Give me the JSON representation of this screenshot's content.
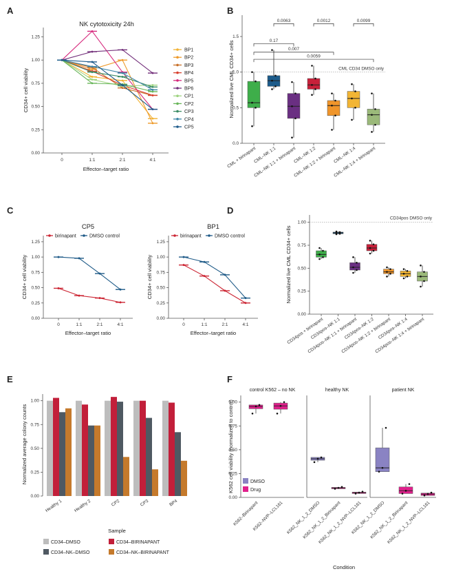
{
  "panel_labels": [
    "A",
    "B",
    "C",
    "D",
    "E",
    "F"
  ],
  "colors": {
    "BP1": "#f2b233",
    "BP2": "#ee9a2a",
    "BP3": "#c8712a",
    "BP4": "#d8412f",
    "BP5": "#d6297d",
    "BP6": "#73307b",
    "CP1": "#9ed380",
    "CP2": "#67b558",
    "CP3": "#3d8d65",
    "CP4": "#3d86a6",
    "CP5": "#1d5a8a",
    "birinapant": "#cc2634",
    "dmso": "#1f5b88",
    "e_cd34_dmso": "#bdbdbd",
    "e_cd34_birin": "#c21f3a",
    "e_nk_dmso": "#4f5962",
    "e_nk_birin": "#c57a2c",
    "f_dmso": "#8a83c3",
    "f_drug": "#e0208c"
  },
  "chart_data": [
    {
      "panel": "A",
      "type": "line",
      "title": "NK cytotoxicity 24h",
      "xlabel": "Effector–target ratio",
      "ylabel": "CD34+ cell viability",
      "categories": [
        "0",
        "1:1",
        "2:1",
        "4:1"
      ],
      "yticks": [
        "0.00",
        "0.25",
        "0.50",
        "0.75",
        "1.00",
        "1.25"
      ],
      "ylim": [
        0,
        1.35
      ],
      "legend_position": "right",
      "series": [
        {
          "name": "BP1",
          "values": [
            1.0,
            0.82,
            0.78,
            0.37
          ]
        },
        {
          "name": "BP2",
          "values": [
            1.0,
            0.9,
            1.0,
            0.32
          ]
        },
        {
          "name": "BP3",
          "values": [
            1.0,
            0.92,
            0.7,
            0.62
          ]
        },
        {
          "name": "BP4",
          "values": [
            1.0,
            0.88,
            0.73,
            0.62
          ]
        },
        {
          "name": "BP5",
          "values": [
            1.0,
            1.31,
            0.87,
            0.47
          ]
        },
        {
          "name": "BP6",
          "values": [
            1.0,
            1.09,
            1.11,
            0.86
          ]
        },
        {
          "name": "CP1",
          "values": [
            1.0,
            0.79,
            0.72,
            0.73
          ]
        },
        {
          "name": "CP2",
          "values": [
            1.0,
            0.75,
            0.74,
            0.66
          ]
        },
        {
          "name": "CP3",
          "values": [
            1.0,
            0.87,
            0.82,
            0.71
          ]
        },
        {
          "name": "CP4",
          "values": [
            1.0,
            0.93,
            0.86,
            0.68
          ]
        },
        {
          "name": "CP5",
          "values": [
            1.0,
            0.98,
            0.73,
            0.47
          ]
        }
      ]
    },
    {
      "panel": "B",
      "type": "box",
      "xlabel": "",
      "ylabel": "Normalized live CML CD34+ cells",
      "yticks": [
        "0.0",
        "0.5",
        "1.0",
        "1.5"
      ],
      "ylim": [
        0,
        1.8
      ],
      "reference_line": {
        "value": 1.0,
        "label": "CML CD34 DMSO only"
      },
      "categories": [
        "CML + birinapant",
        "CML–NK 1:1",
        "CML–NK 1:1 + birinapant",
        "CML–NK 1:2",
        "CML–NK 1:2 + birinapant",
        "CML–NK 1:4",
        "CML–NK 1:4 + birinapant"
      ],
      "box_colors": [
        "#3eae4a",
        "#1c5b8a",
        "#6a2f82",
        "#c8203a",
        "#f0952a",
        "#f2b534",
        "#9bb97a"
      ],
      "boxes": [
        {
          "q1": 0.5,
          "median": 0.57,
          "q3": 0.87,
          "min": 0.24,
          "max": 1.0
        },
        {
          "q1": 0.8,
          "median": 0.88,
          "q3": 0.95,
          "min": 0.76,
          "max": 1.31
        },
        {
          "q1": 0.35,
          "median": 0.52,
          "q3": 0.7,
          "min": 0.08,
          "max": 0.86
        },
        {
          "q1": 0.76,
          "median": 0.82,
          "q3": 0.91,
          "min": 0.68,
          "max": 1.09
        },
        {
          "q1": 0.39,
          "median": 0.53,
          "q3": 0.6,
          "min": 0.19,
          "max": 0.7
        },
        {
          "q1": 0.5,
          "median": 0.63,
          "q3": 0.73,
          "min": 0.33,
          "max": 0.83
        },
        {
          "q1": 0.26,
          "median": 0.4,
          "q3": 0.48,
          "min": 0.16,
          "max": 0.7
        }
      ],
      "significance": [
        {
          "from": 2,
          "to": 3,
          "p": "0.0063"
        },
        {
          "from": 4,
          "to": 5,
          "p": "0.0012"
        },
        {
          "from": 6,
          "to": 7,
          "p": "0.0099"
        },
        {
          "from": 1,
          "to": 3,
          "p": "0.17"
        },
        {
          "from": 1,
          "to": 5,
          "p": "0.007"
        },
        {
          "from": 1,
          "to": 7,
          "p": "0.0059"
        }
      ]
    },
    {
      "panel": "C",
      "type": "line",
      "xlabel": "Effector–target ratio",
      "ylabel": "CD34+ cell viability",
      "categories": [
        "0",
        "1:1",
        "2:1",
        "4:1"
      ],
      "yticks": [
        "0.00",
        "0.25",
        "0.50",
        "0.75",
        "1.00",
        "1.25"
      ],
      "ylim": [
        0,
        1.35
      ],
      "legend_position": "top",
      "subplots": [
        {
          "title": "CP5",
          "series": [
            {
              "name": "birinapant",
              "values": [
                0.49,
                0.37,
                0.33,
                0.26
              ]
            },
            {
              "name": "DMSO control",
              "values": [
                1.0,
                0.98,
                0.73,
                0.47
              ]
            }
          ]
        },
        {
          "title": "BP1",
          "series": [
            {
              "name": "birinapant",
              "values": [
                0.87,
                0.69,
                0.45,
                0.25
              ]
            },
            {
              "name": "DMSO control",
              "values": [
                1.0,
                0.92,
                0.71,
                0.33
              ]
            }
          ]
        }
      ]
    },
    {
      "panel": "D",
      "type": "box",
      "xlabel": "",
      "ylabel": "Normalized live CML CD34+ cells",
      "yticks": [
        "0.00",
        "0.25",
        "0.50",
        "0.75",
        "1.00"
      ],
      "ylim": [
        0,
        1.08
      ],
      "reference_line": {
        "value": 1.0,
        "label": "CD34pos DMSO only"
      },
      "categories": [
        "CD34pos + birinapant",
        "CD34pos–NK 1:1",
        "CD34pos–NK 1:1 + birinapant",
        "CD34pos–NK 1:2",
        "CD34pos–NK 1:2 + birinapant",
        "CD34pos–NK 1:4",
        "CD34pos–NK 1:4 + birinapant"
      ],
      "box_colors": [
        "#3eae4a",
        "#1c5b8a",
        "#6a2f82",
        "#c8203a",
        "#f0952a",
        "#f2b534",
        "#9bb97a"
      ],
      "boxes": [
        {
          "q1": 0.62,
          "median": 0.65,
          "q3": 0.69,
          "min": 0.6,
          "max": 0.72
        },
        {
          "q1": 0.875,
          "median": 0.885,
          "q3": 0.893,
          "min": 0.87,
          "max": 0.9
        },
        {
          "q1": 0.48,
          "median": 0.51,
          "q3": 0.56,
          "min": 0.45,
          "max": 0.62
        },
        {
          "q1": 0.69,
          "median": 0.72,
          "q3": 0.76,
          "min": 0.66,
          "max": 0.8
        },
        {
          "q1": 0.44,
          "median": 0.46,
          "q3": 0.49,
          "min": 0.41,
          "max": 0.51
        },
        {
          "q1": 0.41,
          "median": 0.44,
          "q3": 0.47,
          "min": 0.39,
          "max": 0.49
        },
        {
          "q1": 0.36,
          "median": 0.41,
          "q3": 0.46,
          "min": 0.3,
          "max": 0.53
        }
      ]
    },
    {
      "panel": "E",
      "type": "bar",
      "xlabel": "Sample",
      "ylabel": "Normalized average colony counts",
      "categories": [
        "Healthy 1",
        "Healthy 2",
        "CP2",
        "CP3",
        "BP4"
      ],
      "yticks": [
        "0.00",
        "0.25",
        "0.50",
        "0.75",
        "1.00"
      ],
      "ylim": [
        0,
        1.07
      ],
      "legend_position": "bottom",
      "series": [
        {
          "name": "CD34–DMSO",
          "values": [
            1.0,
            1.0,
            1.0,
            1.0,
            1.0
          ]
        },
        {
          "name": "CD34–BIRINAPANT",
          "values": [
            1.03,
            0.96,
            1.04,
            1.0,
            0.98
          ]
        },
        {
          "name": "CD34–NK–DMSO",
          "values": [
            0.88,
            0.74,
            0.99,
            0.82,
            0.67
          ]
        },
        {
          "name": "CD34–NK–BIRINAPANT",
          "values": [
            0.92,
            0.74,
            0.41,
            0.28,
            0.37
          ]
        }
      ]
    },
    {
      "panel": "F",
      "type": "box",
      "xlabel": "Condition",
      "ylabel": "K562 cell viability (normalized to control)",
      "yticks": [
        "0.00",
        "0.25",
        "0.50",
        "0.75",
        "1.00"
      ],
      "ylim": [
        0,
        1.07
      ],
      "legend": [
        "DMSO",
        "Drug"
      ],
      "facets": [
        {
          "title": "control K562 – no NK",
          "categories": [
            "K562–Birinapant",
            "K562–NVP–LCL161"
          ],
          "boxes": [
            {
              "series": "Drug",
              "q1": 0.93,
              "median": 0.955,
              "q3": 0.97,
              "min": 0.88,
              "max": 0.97
            },
            {
              "series": "Drug",
              "q1": 0.925,
              "median": 0.96,
              "q3": 0.99,
              "min": 0.88,
              "max": 1.0
            }
          ]
        },
        {
          "title": "healthy NK",
          "categories": [
            "K562_NK_1_2_DMSO",
            "K562_NK_1_2_Birinapant",
            "K562_NK_1_2_NVP–LCL161"
          ],
          "boxes": [
            {
              "series": "DMSO",
              "q1": 0.39,
              "median": 0.405,
              "q3": 0.42,
              "min": 0.37,
              "max": 0.42
            },
            {
              "series": "Drug",
              "q1": 0.095,
              "median": 0.1,
              "q3": 0.105,
              "min": 0.09,
              "max": 0.11
            },
            {
              "series": "Drug",
              "q1": 0.045,
              "median": 0.05,
              "q3": 0.055,
              "min": 0.04,
              "max": 0.06
            }
          ]
        },
        {
          "title": "patient NK",
          "categories": [
            "K562_NK_1_2_DMSO",
            "K562_NK_1_2_Birinapant",
            "K562_NK_1_2_NVP–LCL161"
          ],
          "boxes": [
            {
              "series": "DMSO",
              "q1": 0.27,
              "median": 0.31,
              "q3": 0.52,
              "min": 0.27,
              "max": 0.73
            },
            {
              "series": "Drug",
              "q1": 0.04,
              "median": 0.07,
              "q3": 0.11,
              "min": 0.04,
              "max": 0.14
            },
            {
              "series": "Drug",
              "q1": 0.02,
              "median": 0.035,
              "q3": 0.045,
              "min": 0.02,
              "max": 0.05
            }
          ]
        }
      ]
    }
  ]
}
